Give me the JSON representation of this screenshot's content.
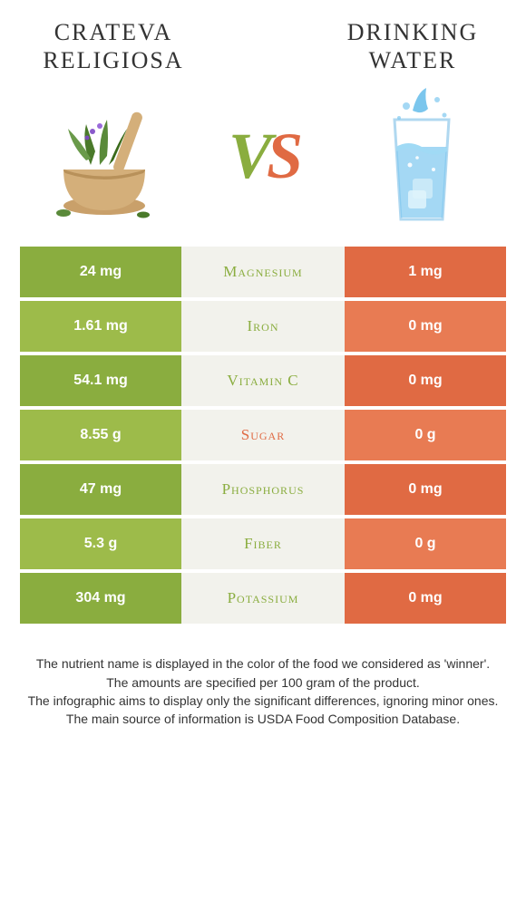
{
  "colors": {
    "left": "#8aad3f",
    "left_alt": "#9dbb4a",
    "right": "#e06a43",
    "right_alt": "#e87b53",
    "mid_bg": "#f2f2ec",
    "mid_text_left": "#8aad3f",
    "mid_text_right": "#e06a43",
    "title_text": "#333333"
  },
  "left_title": "Crateva religiosa",
  "right_title": "Drinking water",
  "vs_label": {
    "v": "V",
    "s": "S"
  },
  "rows": [
    {
      "left": "24 mg",
      "label": "Magnesium",
      "right": "1 mg",
      "winner": "left"
    },
    {
      "left": "1.61 mg",
      "label": "Iron",
      "right": "0 mg",
      "winner": "left"
    },
    {
      "left": "54.1 mg",
      "label": "Vitamin C",
      "right": "0 mg",
      "winner": "left"
    },
    {
      "left": "8.55 g",
      "label": "Sugar",
      "right": "0 g",
      "winner": "right"
    },
    {
      "left": "47 mg",
      "label": "Phosphorus",
      "right": "0 mg",
      "winner": "left"
    },
    {
      "left": "5.3 g",
      "label": "Fiber",
      "right": "0 g",
      "winner": "left"
    },
    {
      "left": "304 mg",
      "label": "Potassium",
      "right": "0 mg",
      "winner": "left"
    }
  ],
  "footer_lines": [
    "The nutrient name is displayed in the color of the food we considered as 'winner'.",
    "The amounts are specified per 100 gram of the product.",
    "The infographic aims to display only the significant differences, ignoring minor ones.",
    "The main source of information is USDA Food Composition Database."
  ]
}
